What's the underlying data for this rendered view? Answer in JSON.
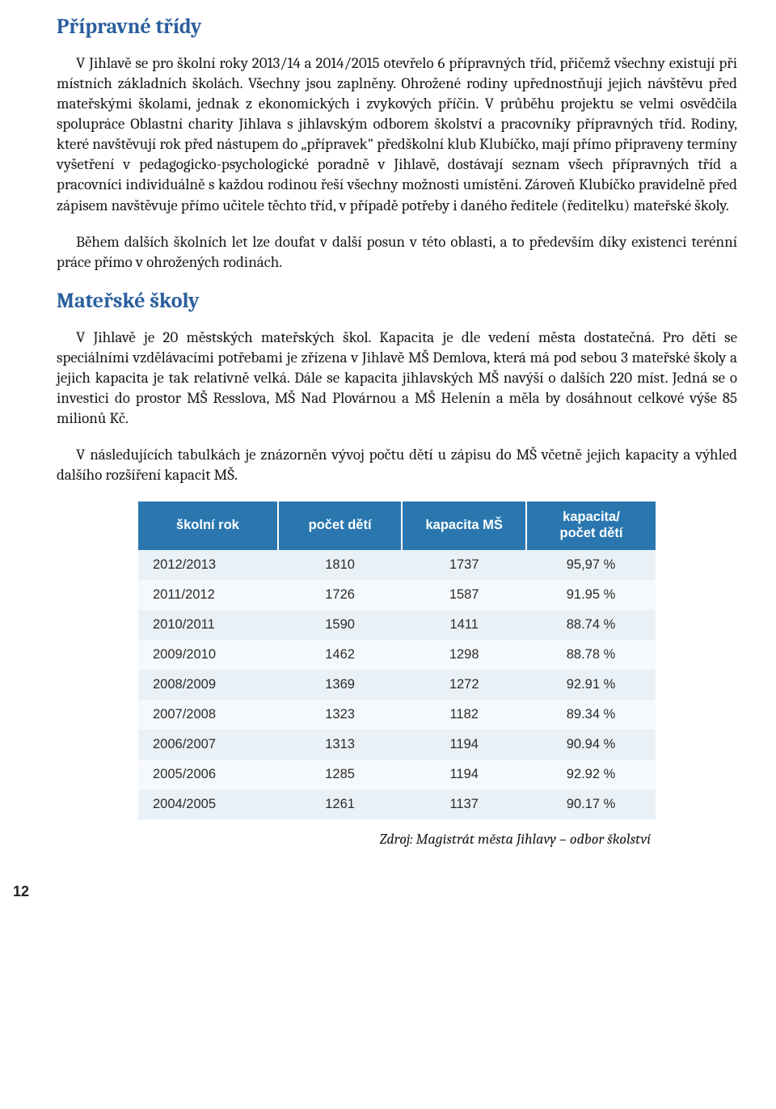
{
  "colors": {
    "heading": "#2a5f9e",
    "table_header_bg": "#2a77b0",
    "row_odd_bg": "#e9f1f7",
    "row_even_bg": "#f6f9fc",
    "text": "#1a1a1a"
  },
  "sections": {
    "pripravne": {
      "title": "Přípravné třídy",
      "p1": "V Jihlavě se pro školní roky 2013/14 a 2014/2015 otevřelo 6 přípravných tříd, přičemž všechny existují při místních základních školách. Všechny jsou zaplněny. Ohrožené rodiny upřednostňují jejich návštěvu před mateřskými školami, jednak z ekonomických i zvykových příčin. V průběhu projektu se velmi osvědčila spolupráce Oblastní charity Jihlava s jihlavským odborem školství a pracovníky přípravných tříd. Rodiny, které navštěvují rok před nástupem do „přípravek\" předškolní klub Klubíčko, mají přímo připraveny termíny vyšetření v pedagogicko-psychologické poradně v Jihlavě, dostávají seznam všech přípravných tříd a pracovníci individuálně s každou rodinou řeší všechny možnosti umístění. Zároveň Klubíčko pravidelně před zápisem navštěvuje přímo učitele těchto tříd, v případě potřeby i daného ředitele (ředitelku) mateřské školy.",
      "p2": "Během dalších školních let lze doufat v další posun v této oblasti, a to především díky existenci terénní práce přímo v ohrožených rodinách."
    },
    "materske": {
      "title": "Mateřské školy",
      "p1": "V Jihlavě je 20 městských mateřských škol. Kapacita je dle vedení města dostatečná. Pro děti se speciálními vzdělávacími potřebami je zřízena v Jihlavě MŠ Demlova, která má pod sebou 3 mateřské školy a jejich kapacita je tak relativně velká. Dále se kapacita jihlavských MŠ navýší o dalších 220 míst. Jedná se o investici do prostor MŠ Resslova, MŠ Nad Plovárnou a MŠ Helenín a měla by dosáhnout celkové výše 85 milionů Kč.",
      "p2": "V následujících tabulkách je znázorněn vývoj počtu dětí u zápisu do MŠ včetně jejich kapacity a výhled dalšího rozšíření kapacit MŠ."
    }
  },
  "table": {
    "col_widths": [
      "27%",
      "24%",
      "24%",
      "25%"
    ],
    "columns": [
      "školní rok",
      "počet dětí",
      "kapacita MŠ",
      "kapacita/\npočet dětí"
    ],
    "rows": [
      [
        "2012/2013",
        "1810",
        "1737",
        "95,97 %"
      ],
      [
        "2011/2012",
        "1726",
        "1587",
        "91.95 %"
      ],
      [
        "2010/2011",
        "1590",
        "1411",
        "88.74 %"
      ],
      [
        "2009/2010",
        "1462",
        "1298",
        "88.78 %"
      ],
      [
        "2008/2009",
        "1369",
        "1272",
        "92.91 %"
      ],
      [
        "2007/2008",
        "1323",
        "1182",
        "89.34 %"
      ],
      [
        "2006/2007",
        "1313",
        "1194",
        "90.94 %"
      ],
      [
        "2005/2006",
        "1285",
        "1194",
        "92.92 %"
      ],
      [
        "2004/2005",
        "1261",
        "1137",
        "90.17 %"
      ]
    ],
    "source": "Zdroj: Magistrát města Jihlavy – odbor školství"
  },
  "page_number": "12"
}
